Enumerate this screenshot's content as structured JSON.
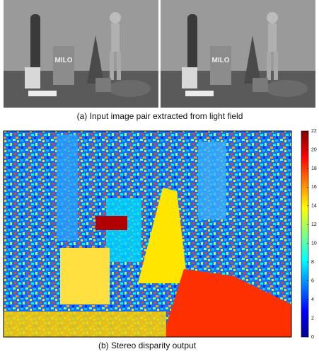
{
  "figure": {
    "input_pair": {
      "caption": "(a) Input image pair extracted from light field"
    },
    "disparity": {
      "caption": "(b) Stereo disparity output",
      "colorbar": {
        "ticks": [
          0,
          2,
          4,
          6,
          8,
          10,
          12,
          14,
          16,
          18,
          20,
          22
        ]
      }
    }
  }
}
